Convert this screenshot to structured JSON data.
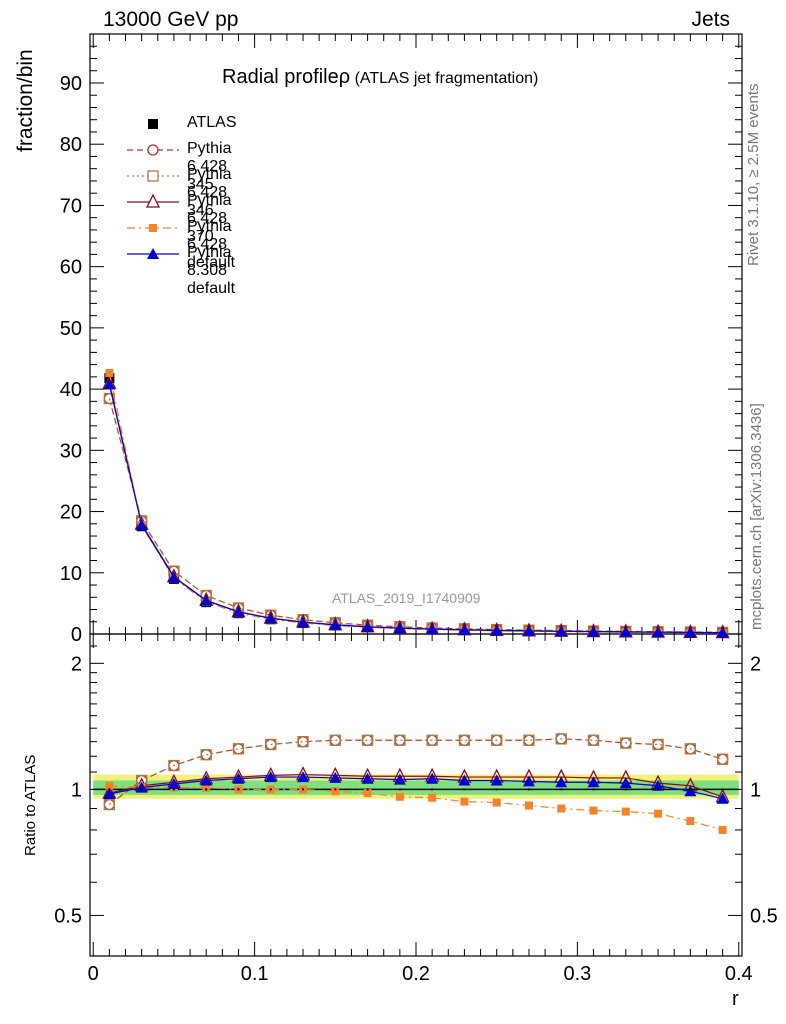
{
  "header": {
    "left": "13000 GeV pp",
    "right": "Jets"
  },
  "side": {
    "rivet": "Rivet 3.1.10, ≥ 2.5M events",
    "mcplots": "mcplots.cern.ch [arXiv:1306.3436]"
  },
  "chart_data": {
    "type": "line",
    "title": "Radial profileρ",
    "subtitle": "(ATLAS jet fragmentation)",
    "watermark": "ATLAS_2019_I1740909",
    "xlabel": "r",
    "ylabel": "fraction/bin",
    "ratio_ylabel": "Ratio to ATLAS",
    "xlim": [
      -0.002,
      0.402
    ],
    "ylim": [
      0,
      98
    ],
    "ratio_ylim": [
      0.4,
      2.35
    ],
    "ratio_log": true,
    "x_ticks": [
      "0",
      "0.1",
      "0.2",
      "0.3",
      "0.4"
    ],
    "y_ticks": [
      "0",
      "10",
      "20",
      "30",
      "40",
      "50",
      "60",
      "70",
      "80",
      "90"
    ],
    "ratio_ticks": [
      "0.5",
      "1",
      "2"
    ],
    "x": [
      0.01,
      0.03,
      0.05,
      0.07,
      0.09,
      0.11,
      0.13,
      0.15,
      0.17,
      0.19,
      0.21,
      0.23,
      0.25,
      0.27,
      0.29,
      0.31,
      0.33,
      0.35,
      0.37,
      0.39
    ],
    "data": {
      "name": "ATLAS",
      "values": [
        41.8,
        17.6,
        9.0,
        5.2,
        3.4,
        2.4,
        1.8,
        1.4,
        1.1,
        0.9,
        0.75,
        0.65,
        0.55,
        0.48,
        0.42,
        0.37,
        0.33,
        0.29,
        0.26,
        0.23
      ]
    },
    "series": [
      {
        "name": "Pythia 6.428 345",
        "color": "#b53232",
        "marker": "circle-open",
        "dash": "6,4",
        "ratio": [
          0.92,
          1.05,
          1.14,
          1.21,
          1.25,
          1.28,
          1.3,
          1.31,
          1.31,
          1.31,
          1.31,
          1.31,
          1.31,
          1.31,
          1.32,
          1.31,
          1.29,
          1.28,
          1.25,
          1.18
        ]
      },
      {
        "name": "Pythia 6.428 346",
        "color": "#a87a3c",
        "marker": "square-open",
        "dash": "2,3",
        "ratio": [
          0.92,
          1.05,
          1.14,
          1.21,
          1.25,
          1.28,
          1.3,
          1.31,
          1.31,
          1.31,
          1.31,
          1.31,
          1.31,
          1.31,
          1.32,
          1.31,
          1.29,
          1.28,
          1.25,
          1.18
        ]
      },
      {
        "name": "Pythia 6.428 370",
        "color": "#8b0a1a",
        "marker": "triangle-open",
        "dash": "",
        "ratio": [
          0.98,
          1.02,
          1.04,
          1.06,
          1.07,
          1.08,
          1.085,
          1.08,
          1.075,
          1.075,
          1.075,
          1.07,
          1.07,
          1.07,
          1.07,
          1.065,
          1.065,
          1.035,
          1.02,
          0.96
        ]
      },
      {
        "name": "Pythia 6.428 default",
        "color": "#f5822a",
        "marker": "square-filled",
        "dash": "8,4,2,4",
        "ratio": [
          1.02,
          1.01,
          1.01,
          1.01,
          1.0,
          1.0,
          1.0,
          0.99,
          0.98,
          0.96,
          0.955,
          0.935,
          0.93,
          0.915,
          0.9,
          0.89,
          0.885,
          0.875,
          0.84,
          0.8
        ]
      },
      {
        "name": "Pythia 8.308 default",
        "color": "#0000d0",
        "marker": "triangle-filled",
        "dash": "",
        "ratio": [
          0.975,
          1.01,
          1.03,
          1.05,
          1.06,
          1.07,
          1.07,
          1.065,
          1.06,
          1.055,
          1.06,
          1.05,
          1.05,
          1.045,
          1.04,
          1.04,
          1.035,
          1.02,
          0.99,
          0.95
        ]
      }
    ],
    "uncertainty_colors": {
      "inner": "#7fe07f",
      "outer": "#f2f27a"
    },
    "legend_position": "top-left"
  }
}
